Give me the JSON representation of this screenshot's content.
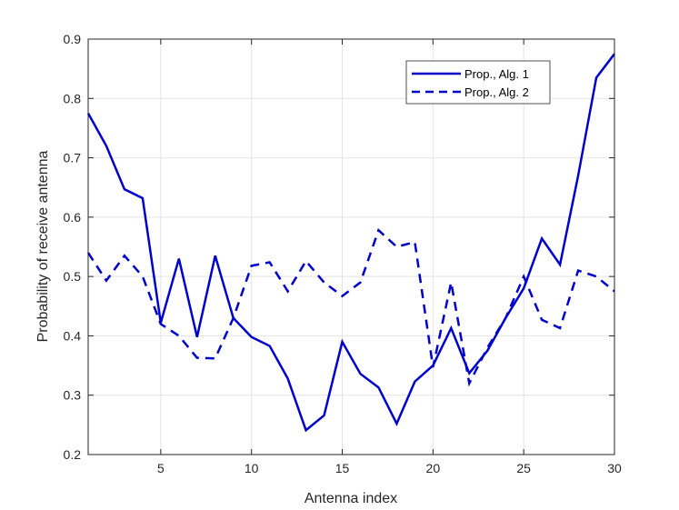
{
  "chart_data": {
    "type": "line",
    "title": "",
    "xlabel": "Antenna index",
    "ylabel": "Probability of receive antenna",
    "xlim": [
      1,
      30
    ],
    "ylim": [
      0.2,
      0.9
    ],
    "xticks": [
      5,
      10,
      15,
      20,
      25,
      30
    ],
    "yticks": [
      0.2,
      0.3,
      0.4,
      0.5,
      0.6,
      0.7,
      0.8,
      0.9
    ],
    "grid": true,
    "legend_position": "top-right",
    "color": "#0000cc",
    "x": [
      1,
      2,
      3,
      4,
      5,
      6,
      7,
      8,
      9,
      10,
      11,
      12,
      13,
      14,
      15,
      16,
      17,
      18,
      19,
      20,
      21,
      22,
      23,
      24,
      25,
      26,
      27,
      28,
      29,
      30
    ],
    "series": [
      {
        "name": "Prop., Alg. 1",
        "style": "solid",
        "values": [
          0.775,
          0.72,
          0.647,
          0.632,
          0.422,
          0.53,
          0.398,
          0.535,
          0.43,
          0.398,
          0.383,
          0.328,
          0.241,
          0.266,
          0.39,
          0.336,
          0.313,
          0.252,
          0.323,
          0.35,
          0.413,
          0.337,
          0.375,
          0.43,
          0.48,
          0.564,
          0.52,
          0.67,
          0.835,
          0.875
        ]
      },
      {
        "name": "Prop., Alg. 2",
        "style": "dashed",
        "values": [
          0.54,
          0.493,
          0.535,
          0.5,
          0.42,
          0.4,
          0.363,
          0.362,
          0.43,
          0.518,
          0.524,
          0.475,
          0.526,
          0.49,
          0.467,
          0.49,
          0.578,
          0.55,
          0.558,
          0.347,
          0.49,
          0.32,
          0.38,
          0.43,
          0.5,
          0.427,
          0.413,
          0.51,
          0.5,
          0.475
        ]
      }
    ]
  }
}
